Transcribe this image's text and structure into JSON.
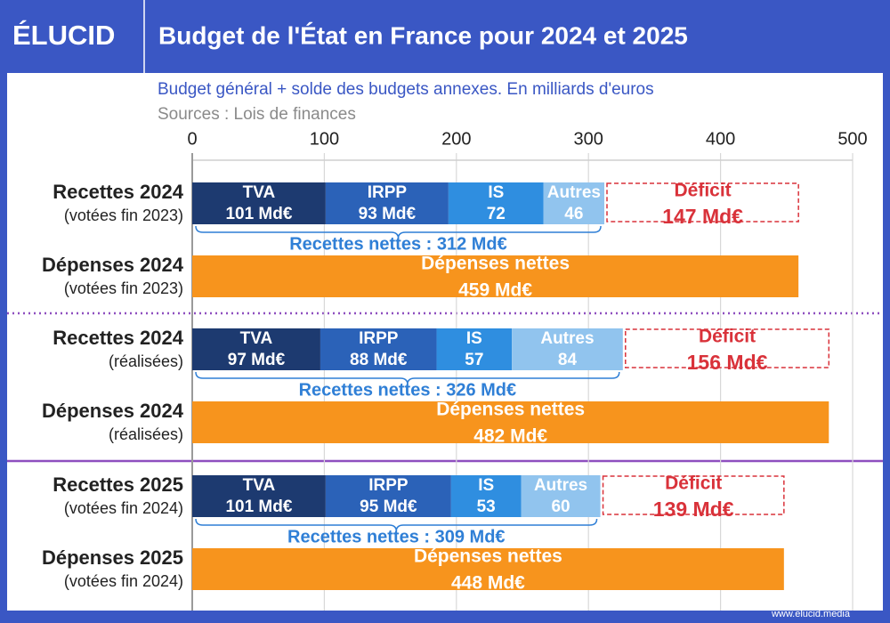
{
  "logo": "ÉLUCID",
  "footer": "www.elucid.media",
  "chart_data": {
    "type": "bar",
    "title": "Budget de l'État en France pour 2024 et 2025",
    "subtitle": "Budget général + solde des budgets annexes. En milliards d'euros",
    "source": "Sources : Lois de finances",
    "xlim": [
      0,
      500
    ],
    "xticks": [
      0,
      100,
      200,
      300,
      400,
      500
    ],
    "grid": true,
    "colors": {
      "TVA": "#1d3a70",
      "IRPP": "#2b62b8",
      "IS": "#2f8ee0",
      "Autres": "#91c4ee",
      "deficit": "#d9323a",
      "expense": "#f7941d",
      "net": "#2f7fd6"
    },
    "rows": [
      {
        "label": "Recettes 2024",
        "sublabel": "(votées fin 2023)",
        "segments": [
          {
            "name": "TVA",
            "value": 101,
            "value_label": "101 Md€"
          },
          {
            "name": "IRPP",
            "value": 93,
            "value_label": "93 Md€"
          },
          {
            "name": "IS",
            "value": 72,
            "value_label": "72"
          },
          {
            "name": "Autres",
            "value": 46,
            "value_label": "46"
          }
        ],
        "net": {
          "value": 312,
          "label": "Recettes nettes : 312 Md€"
        },
        "deficit": {
          "name": "Déficit",
          "value": 147,
          "value_label": "147 Md€"
        }
      },
      {
        "label": "Dépenses 2024",
        "sublabel": "(votées fin 2023)",
        "expense": {
          "name": "Dépenses nettes",
          "value": 459,
          "value_label": "459 Md€"
        }
      },
      {
        "label": "Recettes 2024",
        "sublabel": "(réalisées)",
        "segments": [
          {
            "name": "TVA",
            "value": 97,
            "value_label": "97 Md€"
          },
          {
            "name": "IRPP",
            "value": 88,
            "value_label": "88 Md€"
          },
          {
            "name": "IS",
            "value": 57,
            "value_label": "57"
          },
          {
            "name": "Autres",
            "value": 84,
            "value_label": "84"
          }
        ],
        "net": {
          "value": 326,
          "label": "Recettes nettes : 326 Md€"
        },
        "deficit": {
          "name": "Déficit",
          "value": 156,
          "value_label": "156 Md€"
        }
      },
      {
        "label": "Dépenses 2024",
        "sublabel": "(réalisées)",
        "expense": {
          "name": "Dépenses nettes",
          "value": 482,
          "value_label": "482 Md€"
        }
      },
      {
        "label": "Recettes 2025",
        "sublabel": "(votées fin 2024)",
        "segments": [
          {
            "name": "TVA",
            "value": 101,
            "value_label": "101 Md€"
          },
          {
            "name": "IRPP",
            "value": 95,
            "value_label": "95 Md€"
          },
          {
            "name": "IS",
            "value": 53,
            "value_label": "53"
          },
          {
            "name": "Autres",
            "value": 60,
            "value_label": "60"
          }
        ],
        "net": {
          "value": 309,
          "label": "Recettes nettes : 309 Md€"
        },
        "deficit": {
          "name": "Déficit",
          "value": 139,
          "value_label": "139 Md€"
        }
      },
      {
        "label": "Dépenses 2025",
        "sublabel": "(votées fin 2024)",
        "expense": {
          "name": "Dépenses nettes",
          "value": 448,
          "value_label": "448 Md€"
        }
      }
    ]
  }
}
